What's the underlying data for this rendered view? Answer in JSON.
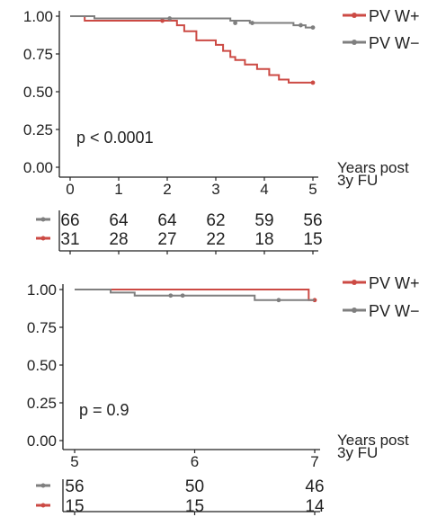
{
  "colors": {
    "w_plus": "#cc4a44",
    "w_minus": "#7f7f7f",
    "axis": "#222222"
  },
  "legend": {
    "w_plus": "PV W+",
    "w_minus": "PV W−"
  },
  "chart_data": [
    {
      "type": "line",
      "subtype": "kaplan-meier",
      "xlabel": "Years post\n3y FU",
      "xlim": [
        0,
        5
      ],
      "ylim": [
        0,
        1
      ],
      "x_ticks": [
        "0",
        "1",
        "2",
        "3",
        "4",
        "5"
      ],
      "x_tick_values": [
        0,
        1,
        2,
        3,
        4,
        5
      ],
      "y_ticks": [
        "0.00",
        "0.25",
        "0.50",
        "0.75",
        "1.00"
      ],
      "y_tick_values": [
        0,
        0.25,
        0.5,
        0.75,
        1.0
      ],
      "annotation": "p < 0.0001",
      "legend_position": "top-right",
      "series": [
        {
          "name": "PV W+",
          "color": "#cc4a44",
          "steps": [
            [
              0,
              1.0
            ],
            [
              0.3,
              0.97
            ],
            [
              2.0,
              0.97
            ],
            [
              2.2,
              0.94
            ],
            [
              2.35,
              0.9
            ],
            [
              2.6,
              0.84
            ],
            [
              3.0,
              0.81
            ],
            [
              3.15,
              0.77
            ],
            [
              3.3,
              0.73
            ],
            [
              3.4,
              0.71
            ],
            [
              3.6,
              0.68
            ],
            [
              3.85,
              0.65
            ],
            [
              4.1,
              0.61
            ],
            [
              4.3,
              0.58
            ],
            [
              4.5,
              0.56
            ],
            [
              5.0,
              0.56
            ]
          ],
          "censored": [
            [
              1.9,
              0.97
            ],
            [
              5.0,
              0.56
            ]
          ]
        },
        {
          "name": "PV W−",
          "color": "#7f7f7f",
          "steps": [
            [
              0,
              1.0
            ],
            [
              0.5,
              0.985
            ],
            [
              3.3,
              0.97
            ],
            [
              3.7,
              0.955
            ],
            [
              4.6,
              0.94
            ],
            [
              4.85,
              0.925
            ],
            [
              5.0,
              0.925
            ]
          ],
          "censored": [
            [
              2.05,
              0.985
            ],
            [
              3.4,
              0.955
            ],
            [
              3.75,
              0.955
            ],
            [
              4.75,
              0.94
            ],
            [
              5.0,
              0.925
            ]
          ]
        }
      ],
      "risk_table": {
        "x": [
          0,
          1,
          2,
          3,
          4,
          5
        ],
        "rows": [
          {
            "series": "PV W−",
            "color": "#7f7f7f",
            "values": [
              "66",
              "64",
              "64",
              "62",
              "59",
              "56"
            ]
          },
          {
            "series": "PV W+",
            "color": "#cc4a44",
            "values": [
              "31",
              "28",
              "27",
              "22",
              "18",
              "15"
            ]
          }
        ]
      }
    },
    {
      "type": "line",
      "subtype": "kaplan-meier",
      "xlabel": "Years post\n3y FU",
      "xlim": [
        5,
        7
      ],
      "ylim": [
        0,
        1
      ],
      "x_ticks": [
        "5",
        "6",
        "7"
      ],
      "x_tick_values": [
        5,
        6,
        7
      ],
      "y_ticks": [
        "0.00",
        "0.25",
        "0.50",
        "0.75",
        "1.00"
      ],
      "y_tick_values": [
        0,
        0.25,
        0.5,
        0.75,
        1.0
      ],
      "annotation": "p = 0.9",
      "legend_position": "top-right",
      "series": [
        {
          "name": "PV W+",
          "color": "#cc4a44",
          "steps": [
            [
              5,
              1.0
            ],
            [
              6.95,
              0.93
            ],
            [
              7.0,
              0.93
            ]
          ],
          "censored": [
            [
              7.0,
              0.93
            ]
          ]
        },
        {
          "name": "PV W−",
          "color": "#7f7f7f",
          "steps": [
            [
              5,
              1.0
            ],
            [
              5.3,
              0.98
            ],
            [
              5.5,
              0.96
            ],
            [
              6.5,
              0.93
            ],
            [
              7.0,
              0.93
            ]
          ],
          "censored": [
            [
              5.8,
              0.96
            ],
            [
              5.9,
              0.96
            ],
            [
              6.7,
              0.93
            ]
          ]
        }
      ],
      "risk_table": {
        "x": [
          5,
          6,
          7
        ],
        "rows": [
          {
            "series": "PV W−",
            "color": "#7f7f7f",
            "values": [
              "56",
              "50",
              "46"
            ]
          },
          {
            "series": "PV W+",
            "color": "#cc4a44",
            "values": [
              "15",
              "15",
              "14"
            ]
          }
        ]
      }
    }
  ]
}
